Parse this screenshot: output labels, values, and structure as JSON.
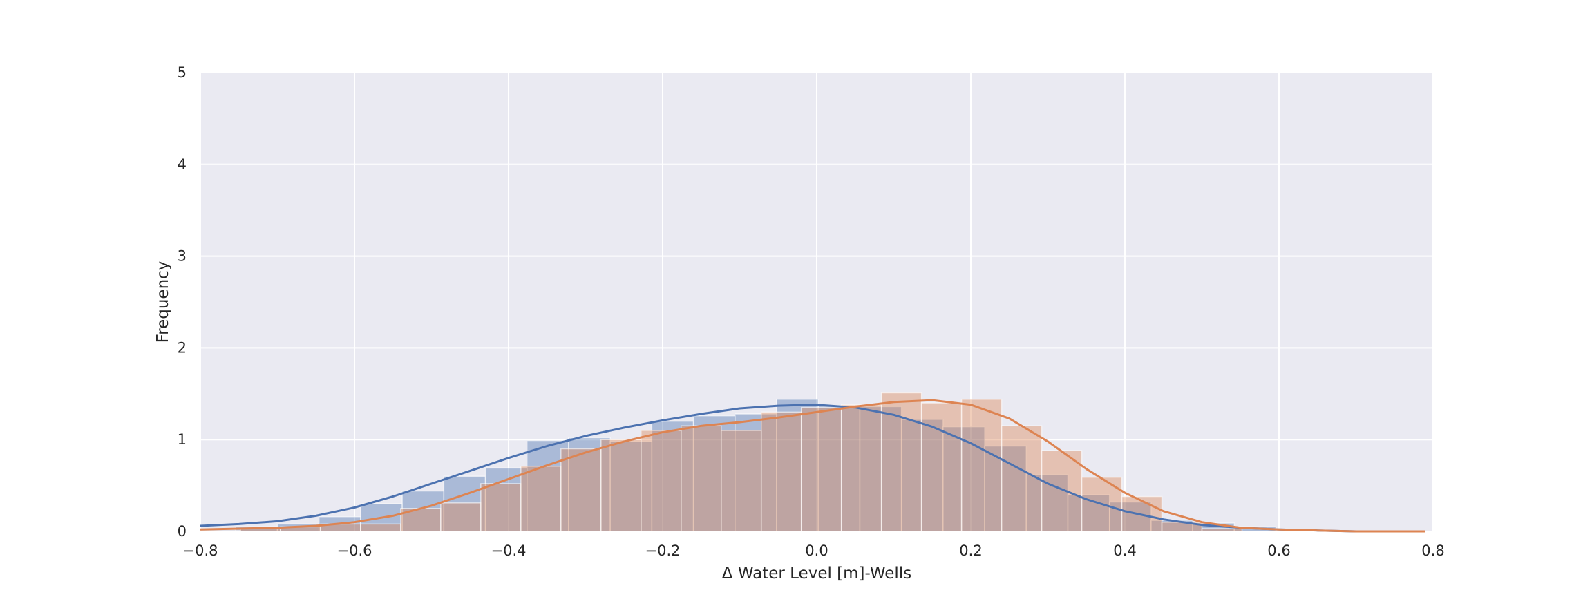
{
  "chart_data": {
    "type": "bar",
    "title": "",
    "xlabel": "Δ Water Level [m]-Wells",
    "ylabel": "Frequency",
    "xlim": [
      -0.8,
      0.8
    ],
    "ylim": [
      0,
      5
    ],
    "grid": true,
    "xticks": [
      "−0.8",
      "−0.6",
      "−0.4",
      "−0.2",
      "0.0",
      "0.2",
      "0.4",
      "0.6",
      "0.8"
    ],
    "yticks": [
      "0",
      "1",
      "2",
      "3",
      "4",
      "5"
    ],
    "series": [
      {
        "kind": "histogram",
        "color": "#4c72b0",
        "bin_edges": [
          -0.8,
          -0.754,
          -0.7,
          -0.646,
          -0.592,
          -0.538,
          -0.484,
          -0.43,
          -0.376,
          -0.322,
          -0.268,
          -0.214,
          -0.16,
          -0.106,
          -0.052,
          0.002,
          0.056,
          0.11,
          0.164,
          0.218,
          0.272,
          0.326,
          0.38,
          0.434,
          0.488,
          0.542,
          0.596
        ],
        "values": [
          0.02,
          0.05,
          0.08,
          0.16,
          0.3,
          0.44,
          0.6,
          0.69,
          0.99,
          1.02,
          0.98,
          1.2,
          1.26,
          1.28,
          1.44,
          1.37,
          1.36,
          1.22,
          1.14,
          0.93,
          0.62,
          0.4,
          0.32,
          0.12,
          0.09,
          0.05
        ]
      },
      {
        "kind": "histogram",
        "color": "#dd8452",
        "bin_edges": [
          -0.8,
          -0.748,
          -0.696,
          -0.644,
          -0.592,
          -0.54,
          -0.488,
          -0.436,
          -0.384,
          -0.332,
          -0.28,
          -0.228,
          -0.176,
          -0.124,
          -0.072,
          -0.02,
          0.032,
          0.084,
          0.136,
          0.188,
          0.24,
          0.292,
          0.344,
          0.396,
          0.448,
          0.5,
          0.552
        ],
        "values": [
          0.01,
          0.03,
          0.05,
          0.08,
          0.08,
          0.25,
          0.31,
          0.52,
          0.71,
          0.9,
          1.0,
          1.1,
          1.15,
          1.1,
          1.3,
          1.35,
          1.38,
          1.51,
          1.4,
          1.44,
          1.15,
          0.88,
          0.59,
          0.38,
          0.1,
          0.03
        ]
      },
      {
        "kind": "kde",
        "color": "#4c72b0",
        "x": [
          -0.8,
          -0.75,
          -0.7,
          -0.65,
          -0.6,
          -0.55,
          -0.5,
          -0.45,
          -0.4,
          -0.35,
          -0.3,
          -0.25,
          -0.2,
          -0.15,
          -0.1,
          -0.05,
          0.0,
          0.05,
          0.1,
          0.15,
          0.2,
          0.25,
          0.3,
          0.35,
          0.4,
          0.45,
          0.5,
          0.55,
          0.6,
          0.65,
          0.7
        ],
        "y": [
          0.06,
          0.08,
          0.11,
          0.17,
          0.26,
          0.38,
          0.52,
          0.66,
          0.8,
          0.93,
          1.04,
          1.13,
          1.21,
          1.28,
          1.34,
          1.37,
          1.38,
          1.35,
          1.27,
          1.14,
          0.96,
          0.74,
          0.52,
          0.35,
          0.22,
          0.13,
          0.07,
          0.04,
          0.02,
          0.01,
          0.0
        ]
      },
      {
        "kind": "kde",
        "color": "#dd8452",
        "x": [
          -0.8,
          -0.75,
          -0.7,
          -0.65,
          -0.6,
          -0.55,
          -0.5,
          -0.45,
          -0.4,
          -0.35,
          -0.3,
          -0.25,
          -0.2,
          -0.15,
          -0.1,
          -0.05,
          0.0,
          0.05,
          0.1,
          0.15,
          0.2,
          0.25,
          0.3,
          0.35,
          0.4,
          0.45,
          0.5,
          0.55,
          0.6,
          0.65,
          0.7,
          0.75,
          0.79
        ],
        "y": [
          0.02,
          0.03,
          0.04,
          0.06,
          0.1,
          0.17,
          0.28,
          0.42,
          0.57,
          0.72,
          0.86,
          0.98,
          1.08,
          1.15,
          1.19,
          1.24,
          1.3,
          1.36,
          1.41,
          1.43,
          1.38,
          1.23,
          0.98,
          0.68,
          0.42,
          0.22,
          0.1,
          0.04,
          0.02,
          0.01,
          0.0,
          0.0,
          0.0
        ]
      }
    ]
  }
}
